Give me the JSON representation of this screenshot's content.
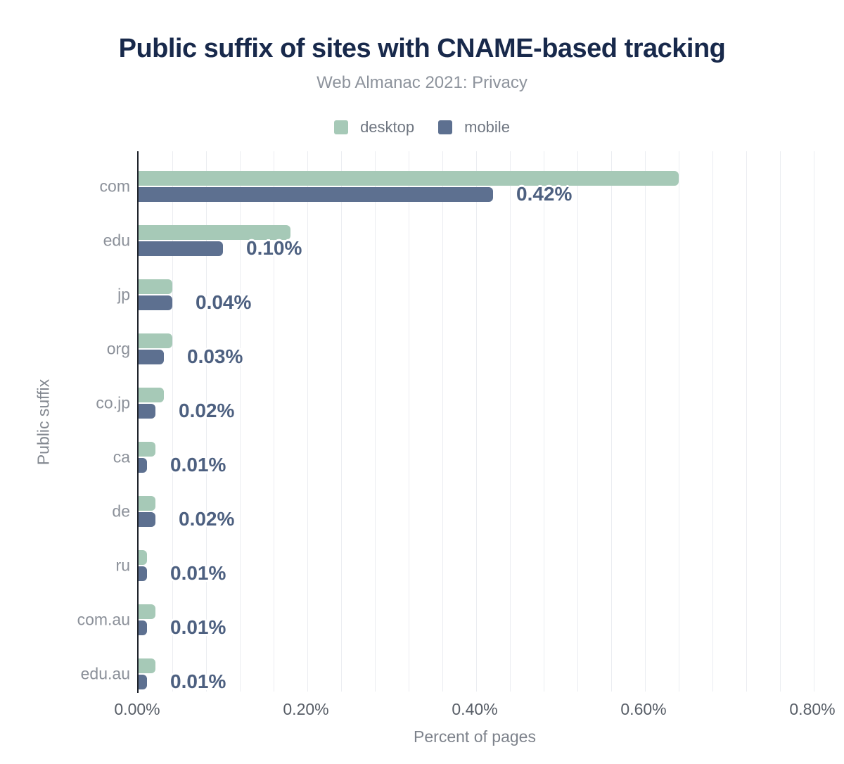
{
  "title": "Public suffix of sites with CNAME-based tracking",
  "subtitle": "Web Almanac 2021: Privacy",
  "legend": [
    {
      "label": "desktop",
      "color": "#a6c9b7"
    },
    {
      "label": "mobile",
      "color": "#5d7090"
    }
  ],
  "colors": {
    "title": "#18294b",
    "subtitle": "#8d939c",
    "desktop_bar": "#a6c9b7",
    "mobile_bar": "#5d7090",
    "value_label": "#4d6080",
    "axis_line": "#1f232b",
    "gridline": "#ebedf1",
    "category_label": "#8b9099",
    "tick_label": "#575d66",
    "axis_title": "#7d828b"
  },
  "chart_data": {
    "type": "bar",
    "orientation": "horizontal",
    "title": "Public suffix of sites with CNAME-based tracking",
    "subtitle": "Web Almanac 2021: Privacy",
    "categories": [
      "com",
      "edu",
      "jp",
      "org",
      "co.jp",
      "ca",
      "de",
      "ru",
      "com.au",
      "edu.au"
    ],
    "series": [
      {
        "name": "desktop",
        "values": [
          0.64,
          0.18,
          0.04,
          0.04,
          0.03,
          0.02,
          0.02,
          0.01,
          0.02,
          0.02
        ]
      },
      {
        "name": "mobile",
        "values": [
          0.42,
          0.1,
          0.04,
          0.03,
          0.02,
          0.01,
          0.02,
          0.01,
          0.01,
          0.01
        ]
      }
    ],
    "bar_labels": [
      "0.42%",
      "0.10%",
      "0.04%",
      "0.03%",
      "0.02%",
      "0.01%",
      "0.02%",
      "0.01%",
      "0.01%",
      "0.01%"
    ],
    "bar_labels_show_series": "mobile",
    "xlabel": "Percent of pages",
    "ylabel": "Public suffix",
    "x_ticks": [
      "0.00%",
      "0.20%",
      "0.40%",
      "0.60%",
      "0.80%"
    ],
    "x_tick_values": [
      0,
      0.2,
      0.4,
      0.6,
      0.8
    ],
    "xlim": [
      0,
      0.8
    ],
    "grid": "vertical minor gridlines every 0.04%",
    "legend_position": "top",
    "units": "percent of pages"
  }
}
